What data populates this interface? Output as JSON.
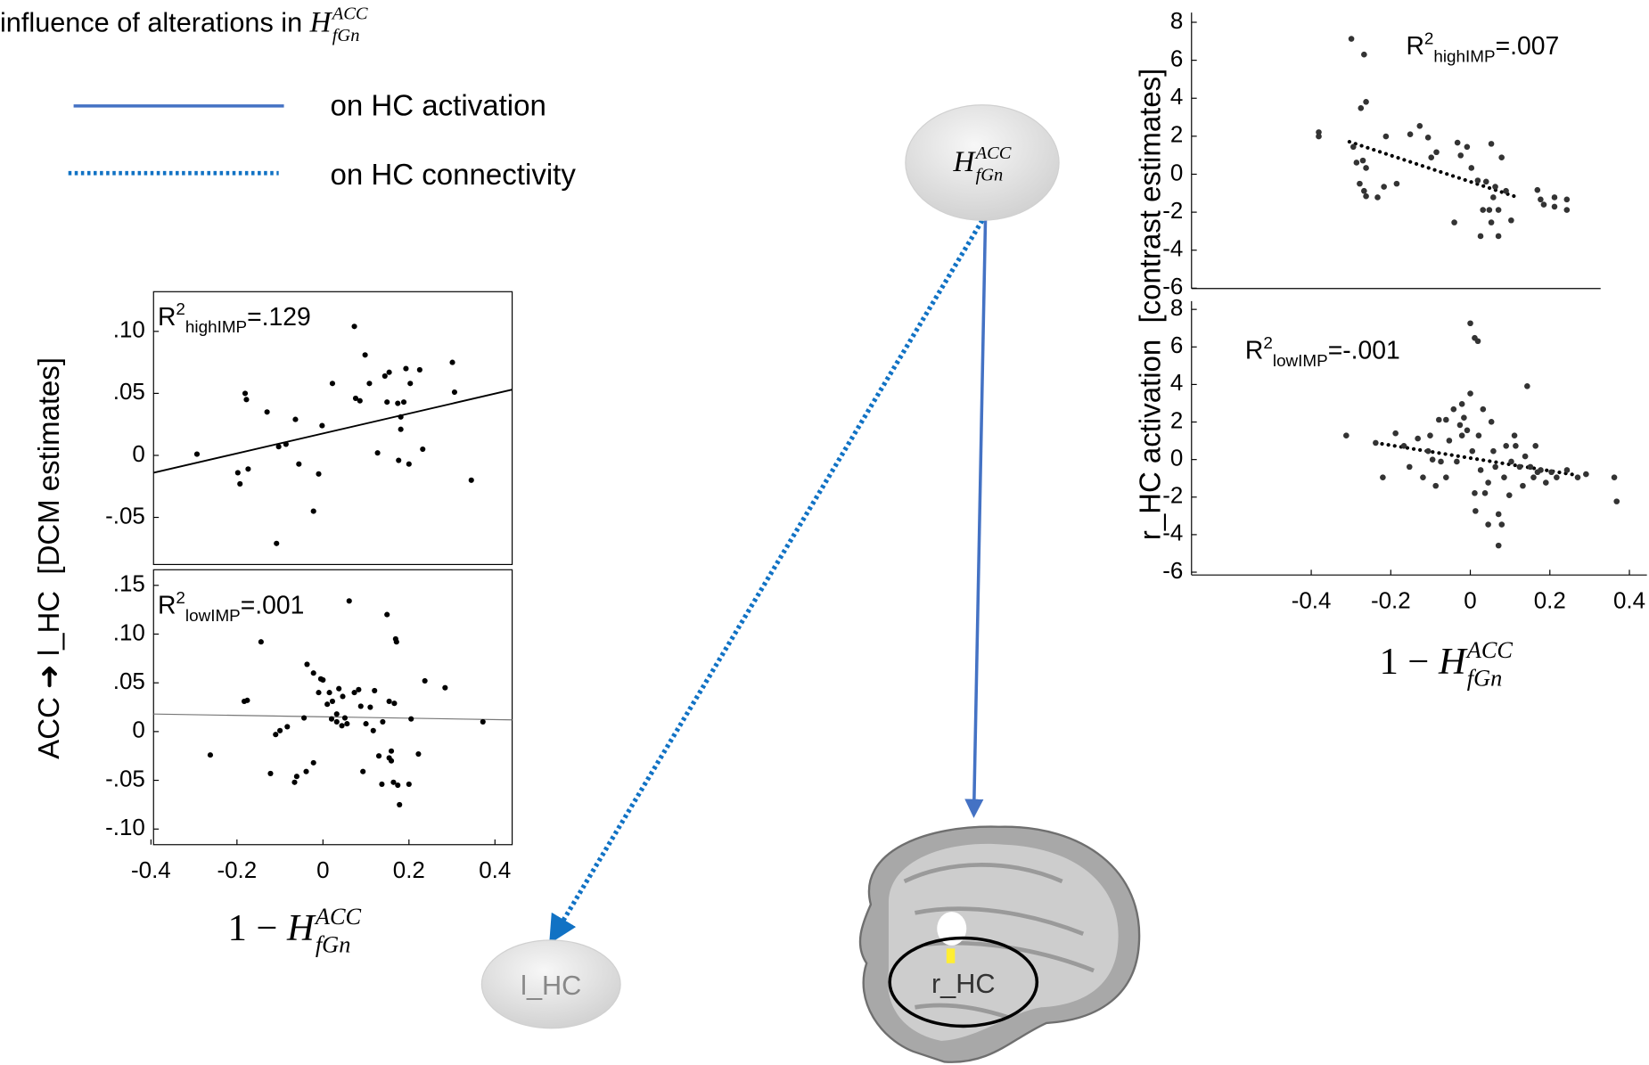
{
  "legend": {
    "title": {
      "text": "influence of alterations in ",
      "base": "H",
      "sup": "ACC",
      "sub": "fGn"
    },
    "items": [
      "on HC activation",
      "on HC connectivity"
    ]
  },
  "nodes": [
    {
      "base": "H",
      "sup": "ACC",
      "sub": "fGn"
    },
    {
      "label": "l_HC"
    },
    {
      "label": "r_HC"
    }
  ],
  "left_panel": {
    "ylabel": {
      "parts": [
        "ACC ",
        "➜",
        " l_HC  [DCM estimates]"
      ]
    },
    "xlabel": {
      "prefix": "1 − ",
      "base": "H",
      "sup": "ACC",
      "sub": "fGn"
    }
  },
  "right_panel": {
    "ylabel": "r_HC activation  [contrast estimates]",
    "xlabel": {
      "prefix": "1 − ",
      "base": "H",
      "sup": "ACC",
      "sub": "fGn"
    }
  },
  "chart_data": [
    {
      "type": "scatter",
      "color": "#000000",
      "annotation": {
        "base": "R",
        "sup": "2",
        "sub": "highIMP",
        "text": "=.129"
      },
      "xlim": [
        -0.394,
        0.44
      ],
      "ylim": [
        -0.088,
        0.132
      ],
      "yticks": [
        {
          "value": 0.1,
          "label": ".10"
        },
        {
          "value": 0.05,
          "label": ".05"
        },
        0,
        {
          "value": -0.05,
          "label": "-.05"
        }
      ],
      "points": {
        "x": [
          -0.293,
          -0.181,
          -0.178,
          -0.13,
          -0.198,
          -0.174,
          -0.193,
          -0.103,
          -0.086,
          -0.064,
          -0.056,
          -0.108,
          -0.022,
          -0.002,
          -0.01,
          0.022,
          0.073,
          0.076,
          0.098,
          0.086,
          0.108,
          0.127,
          0.144,
          0.149,
          0.154,
          0.174,
          0.181,
          0.181,
          0.188,
          0.193,
          0.176,
          0.2,
          0.203,
          0.225,
          0.232,
          0.301,
          0.306,
          0.345
        ],
        "y": [
          0.001,
          0.05,
          0.045,
          0.035,
          -0.014,
          -0.011,
          -0.023,
          0.007,
          0.009,
          0.029,
          -0.007,
          -0.071,
          -0.045,
          0.024,
          -0.015,
          0.058,
          0.104,
          0.046,
          0.081,
          0.044,
          0.058,
          0.002,
          0.064,
          0.043,
          0.067,
          0.042,
          0.021,
          0.031,
          0.043,
          0.07,
          -0.004,
          -0.007,
          0.058,
          0.069,
          0.005,
          0.075,
          0.051,
          -0.02
        ]
      },
      "fit": {
        "x": [
          -0.394,
          0.44
        ],
        "y": [
          -0.014,
          0.053
        ],
        "color": "#000000",
        "style": "solid"
      }
    },
    {
      "type": "scatter",
      "color": "#000000",
      "annotation": {
        "base": "R",
        "sup": "2",
        "sub": "lowIMP",
        "text": "=.001"
      },
      "xlim": [
        -0.394,
        0.44
      ],
      "ylim": [
        -0.116,
        0.166
      ],
      "xticks": [
        -0.4,
        -0.2,
        0,
        0.2,
        0.4
      ],
      "yticks": [
        {
          "value": 0.15,
          "label": ".15"
        },
        {
          "value": 0.1,
          "label": ".10"
        },
        {
          "value": 0.05,
          "label": ".05"
        },
        0,
        {
          "value": -0.05,
          "label": "-.05"
        },
        {
          "value": -0.1,
          "label": "-.10"
        }
      ],
      "points": {
        "x": [
          -0.262,
          -0.183,
          -0.176,
          -0.144,
          -0.122,
          -0.11,
          -0.1,
          -0.083,
          -0.061,
          -0.066,
          -0.039,
          -0.044,
          -0.037,
          -0.022,
          -0.022,
          -0.005,
          0,
          -0.01,
          0.01,
          0.02,
          0.032,
          0.022,
          0.037,
          0.044,
          0.051,
          0.046,
          0.056,
          0.073,
          0.083,
          0.088,
          0.093,
          0.1,
          0.11,
          0.117,
          0.12,
          0.13,
          0.139,
          0.137,
          0.154,
          0.159,
          0.159,
          0.164,
          0.166,
          0.149,
          0.154,
          0.169,
          0.171,
          0.174,
          0.178,
          0.205,
          0.2,
          0.222,
          0.237,
          0.284,
          0.372,
          0.061,
          0.032,
          0.015
        ],
        "y": [
          -0.024,
          0.031,
          0.032,
          0.092,
          -0.043,
          -0.003,
          0.001,
          0.005,
          -0.046,
          -0.052,
          -0.041,
          0.014,
          0.069,
          -0.032,
          0.06,
          0.054,
          0.053,
          0.04,
          0.028,
          0.013,
          0.018,
          0.031,
          0.044,
          0.006,
          0.014,
          0.036,
          0.008,
          0.04,
          0.043,
          0.026,
          -0.041,
          0.008,
          0.025,
          0.001,
          0.042,
          -0.025,
          0.01,
          -0.054,
          -0.027,
          -0.02,
          -0.03,
          -0.052,
          0.029,
          0.12,
          0.031,
          0.095,
          0.092,
          -0.055,
          -0.075,
          0.013,
          -0.054,
          -0.023,
          0.052,
          0.045,
          0.01,
          0.134,
          0.01,
          0.04
        ]
      },
      "fit": {
        "x": [
          -0.394,
          0.44
        ],
        "y": [
          0.018,
          0.012
        ],
        "color": "#777777",
        "style": "solid"
      }
    },
    {
      "type": "scatter",
      "color": "#333333",
      "annotation": {
        "base": "R",
        "sup": "2",
        "sub": "highIMP",
        "text": "=.007"
      },
      "xlim": [
        -0.701,
        0.328
      ],
      "ylim": [
        -6.02,
        8.51
      ],
      "yticks": [
        8,
        6,
        4,
        2,
        0,
        -2,
        -4,
        -6
      ],
      "points": {
        "x": [
          -0.381,
          -0.381,
          -0.299,
          -0.267,
          -0.275,
          -0.262,
          -0.294,
          -0.286,
          -0.27,
          -0.262,
          -0.267,
          -0.262,
          -0.278,
          -0.217,
          -0.233,
          -0.212,
          -0.185,
          -0.151,
          -0.127,
          -0.106,
          -0.098,
          -0.085,
          -0.04,
          -0.032,
          -0.024,
          -0.008,
          0.003,
          0.019,
          0.032,
          0.04,
          0.048,
          0.053,
          0.058,
          0.053,
          0.063,
          0.071,
          0.079,
          0.09,
          0.103,
          0.071,
          0.026,
          0.169,
          0.177,
          0.185,
          0.212,
          0.212,
          0.243,
          0.243
        ],
        "y": [
          2.21,
          1.99,
          7.13,
          6.3,
          3.48,
          3.81,
          1.44,
          0.61,
          0.72,
          0.33,
          -0.88,
          -1.16,
          -0.5,
          -0.66,
          -1.22,
          1.99,
          -0.5,
          2.1,
          2.54,
          1.93,
          0.88,
          1.16,
          -2.54,
          1.66,
          0.99,
          1.44,
          0.33,
          -0.33,
          -1.88,
          -0.39,
          -1.88,
          -2.54,
          -1.22,
          1.6,
          -0.66,
          -1.88,
          0.88,
          -0.88,
          -2.43,
          -3.26,
          -3.26,
          -0.83,
          -1.33,
          -1.6,
          -1.22,
          -1.71,
          -1.33,
          -1.88
        ]
      },
      "fit": {
        "x": [
          -0.304,
          0.111
        ],
        "y": [
          1.71,
          -1.16
        ],
        "color": "#000000",
        "style": "dotted"
      }
    },
    {
      "type": "scatter",
      "color": "#333333",
      "annotation": {
        "base": "R",
        "sup": "2",
        "sub": "lowIMP",
        "text": "=-.001"
      },
      "xlim": [
        -0.701,
        0.444
      ],
      "ylim": [
        -6.15,
        8.44
      ],
      "xticks": [
        -0.4,
        -0.2,
        0,
        0.2,
        0.4
      ],
      "yticks": [
        8,
        6,
        4,
        2,
        0,
        -2,
        -4,
        -6
      ],
      "points": {
        "x": [
          -0.312,
          -0.238,
          -0.22,
          -0.188,
          -0.167,
          -0.153,
          -0.132,
          -0.119,
          -0.106,
          -0.101,
          -0.087,
          -0.079,
          -0.074,
          -0.061,
          -0.053,
          -0.042,
          -0.034,
          -0.026,
          -0.021,
          -0.016,
          -0.008,
          0,
          0.005,
          0.011,
          0.013,
          0,
          0.011,
          0.019,
          0.021,
          0.026,
          0.032,
          0.037,
          0.045,
          0.053,
          0.058,
          0.063,
          0.071,
          0.079,
          0.085,
          0.09,
          0.098,
          0.103,
          0.111,
          0.114,
          0.124,
          0.132,
          0.138,
          0.143,
          0.151,
          0.159,
          0.164,
          0.169,
          0.177,
          0.19,
          0.204,
          0.217,
          0.243,
          0.27,
          0.291,
          0.362,
          0.368,
          0.071,
          0.045,
          -0.021,
          -0.061,
          -0.095
        ],
        "y": [
          1.28,
          0.89,
          -0.95,
          1.4,
          0.73,
          -0.39,
          1.12,
          -0.95,
          0.45,
          1.28,
          -1.4,
          2.12,
          -0.11,
          -0.95,
          1.01,
          2.68,
          -0.11,
          1.84,
          2.96,
          2.23,
          1.56,
          3.52,
          0.45,
          -1.79,
          -2.74,
          7.26,
          6.48,
          6.31,
          1.28,
          -0.56,
          2.68,
          -1.79,
          -1.23,
          2.01,
          0.45,
          -0.39,
          -4.58,
          -3.46,
          -0.95,
          0.73,
          -1.9,
          -0.11,
          1.28,
          0.73,
          -0.39,
          -1.4,
          0.17,
          3.91,
          -0.39,
          -0.95,
          0.73,
          -0.67,
          -0.56,
          -1.23,
          -0.67,
          -0.95,
          -0.56,
          -0.95,
          -0.78,
          -0.95,
          -2.23,
          -2.91,
          -3.46,
          1.28,
          2.12,
          0
        ]
      },
      "fit": {
        "x": [
          -0.238,
          0.27
        ],
        "y": [
          0.89,
          -0.84
        ],
        "color": "#000000",
        "style": "dotted"
      }
    }
  ]
}
